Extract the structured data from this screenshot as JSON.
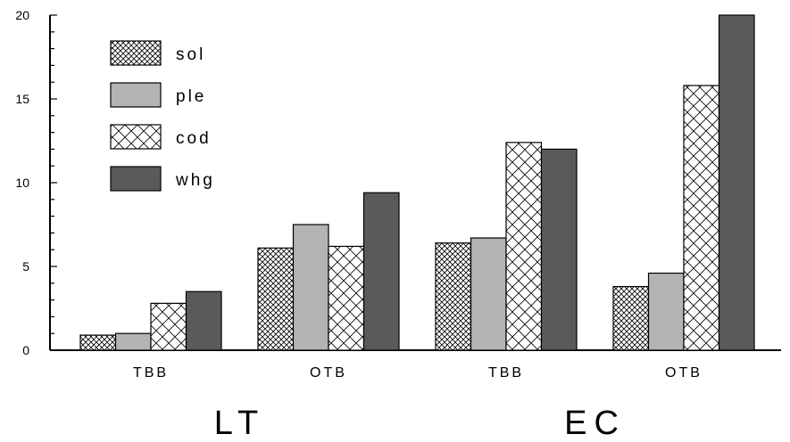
{
  "chart_data": {
    "type": "bar",
    "groups": [
      {
        "label": "LT",
        "categories": [
          "TBB",
          "OTB"
        ]
      },
      {
        "label": "EC",
        "categories": [
          "TBB",
          "OTB"
        ]
      }
    ],
    "categories": [
      "TBB",
      "OTB",
      "TBB",
      "OTB"
    ],
    "series": [
      {
        "name": "sol",
        "pattern": "fine-crosshatch",
        "color": "#ffffff",
        "values": [
          0.9,
          6.1,
          6.4,
          3.8
        ]
      },
      {
        "name": "ple",
        "pattern": "solid",
        "color": "#b3b3b3",
        "values": [
          1.0,
          7.5,
          6.7,
          4.6
        ]
      },
      {
        "name": "cod",
        "pattern": "coarse-crosshatch",
        "color": "#ffffff",
        "values": [
          2.8,
          6.2,
          12.4,
          15.8
        ]
      },
      {
        "name": "whg",
        "pattern": "solid",
        "color": "#5a5a5a",
        "values": [
          3.5,
          9.4,
          12.0,
          20.0
        ]
      }
    ],
    "yticks": [
      0,
      5,
      10,
      15,
      20
    ],
    "ylim": [
      0,
      20
    ],
    "title": "",
    "xlabel": "",
    "ylabel": "",
    "legend_position": "top-left",
    "grid": false
  }
}
